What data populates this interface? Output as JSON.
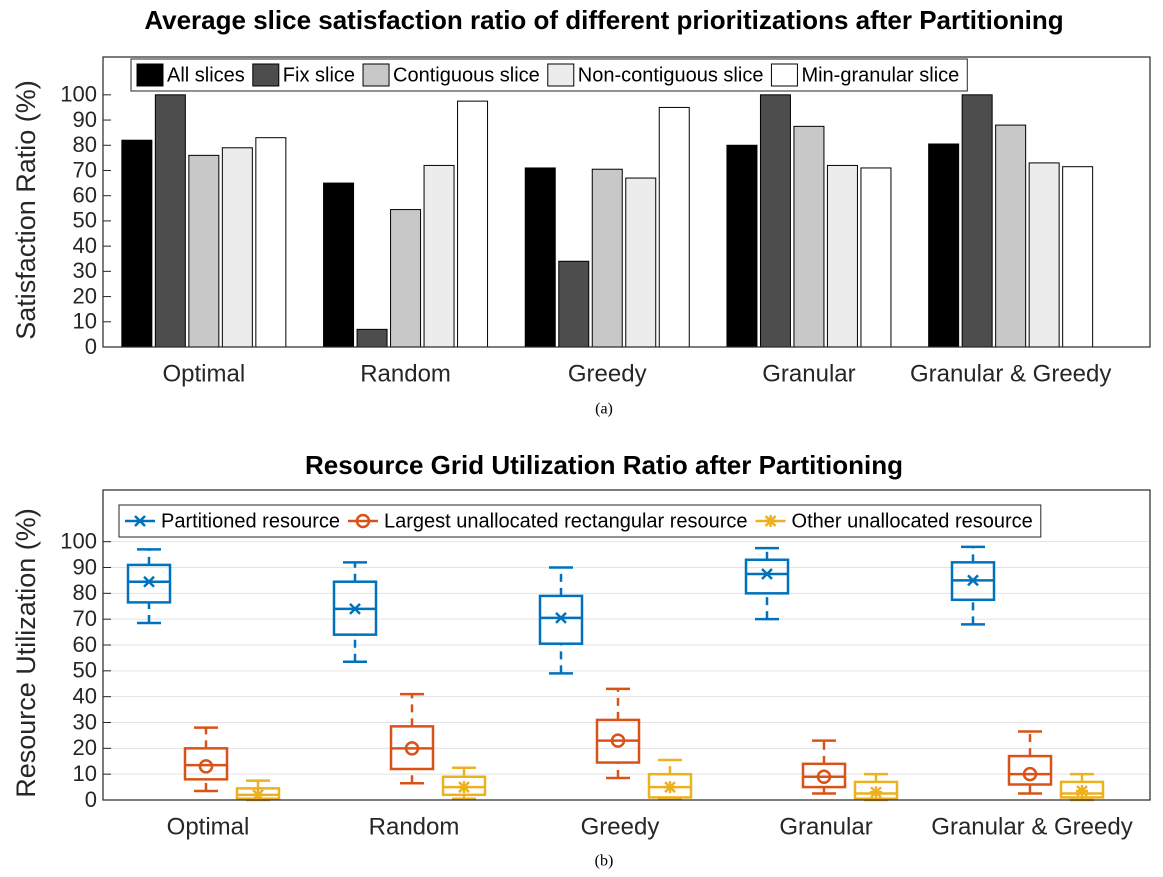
{
  "chart_data": [
    {
      "type": "bar",
      "title": "Average slice satisfaction ratio of different prioritizations after Partitioning",
      "ylabel": "Satisfaction Ratio (%)",
      "caption": "(a)",
      "categories": [
        "Optimal",
        "Random",
        "Greedy",
        "Granular",
        "Granular & Greedy"
      ],
      "series": [
        {
          "name": "All slices",
          "color": "#000000",
          "values": [
            82,
            65,
            71,
            80,
            80.5
          ]
        },
        {
          "name": "Fix slice",
          "color": "#4d4d4d",
          "values": [
            100,
            7,
            34,
            100,
            100
          ]
        },
        {
          "name": "Contiguous slice",
          "color": "#c8c8c8",
          "values": [
            76,
            54.5,
            70.5,
            87.5,
            88
          ]
        },
        {
          "name": "Non-contiguous slice",
          "color": "#ececec",
          "values": [
            79,
            72,
            67,
            72,
            73
          ]
        },
        {
          "name": "Min-granular slice",
          "color": "#ffffff",
          "values": [
            83,
            97.5,
            95,
            71,
            71.5
          ]
        }
      ],
      "ylim": [
        0,
        115
      ],
      "yticks": [
        0,
        10,
        20,
        30,
        40,
        50,
        60,
        70,
        80,
        90,
        100
      ],
      "grid": false,
      "legend": "top"
    },
    {
      "type": "box",
      "title": "Resource Grid Utilization Ratio after Partitioning",
      "ylabel": "Resource Utilization (%)",
      "caption": "(b)",
      "categories": [
        "Optimal",
        "Random",
        "Greedy",
        "Granular",
        "Granular & Greedy"
      ],
      "series": [
        {
          "name": "Partitioned resource",
          "color": "#0072bd",
          "marker": "x",
          "low": [
            68.5,
            53.5,
            49,
            70,
            68
          ],
          "q1": [
            76.5,
            64,
            60.5,
            80,
            77.5
          ],
          "median": [
            84.5,
            74,
            70.5,
            87.5,
            85
          ],
          "q3": [
            91,
            84.5,
            79,
            93,
            92
          ],
          "high": [
            97,
            92,
            90,
            97.5,
            98
          ],
          "mean": [
            84.5,
            74,
            70.5,
            87.5,
            85
          ]
        },
        {
          "name": "Largest unallocated rectangular resource",
          "color": "#d95319",
          "marker": "o",
          "low": [
            3.5,
            6.5,
            8.5,
            2.5,
            2.5
          ],
          "q1": [
            8,
            12,
            14.5,
            5,
            6
          ],
          "median": [
            13.5,
            20,
            23,
            9,
            10
          ],
          "q3": [
            20,
            28.5,
            31,
            14,
            17
          ],
          "high": [
            28,
            41,
            43,
            23,
            26.5
          ],
          "mean": [
            13,
            20,
            23,
            9,
            10
          ]
        },
        {
          "name": "Other unallocated resource",
          "color": "#edb120",
          "marker": "*",
          "low": [
            0,
            0.5,
            0.5,
            0,
            0
          ],
          "q1": [
            0.5,
            2,
            1,
            0.5,
            1
          ],
          "median": [
            2,
            5,
            5,
            2.5,
            2.5
          ],
          "q3": [
            4.5,
            9,
            10,
            7,
            7
          ],
          "high": [
            7.5,
            12.5,
            15.5,
            10,
            10
          ],
          "mean": [
            2,
            5,
            5,
            3,
            3.5
          ]
        }
      ],
      "ylim": [
        0,
        120
      ],
      "yticks": [
        0,
        10,
        20,
        30,
        40,
        50,
        60,
        70,
        80,
        90,
        100
      ],
      "grid": true,
      "legend": "top"
    }
  ]
}
